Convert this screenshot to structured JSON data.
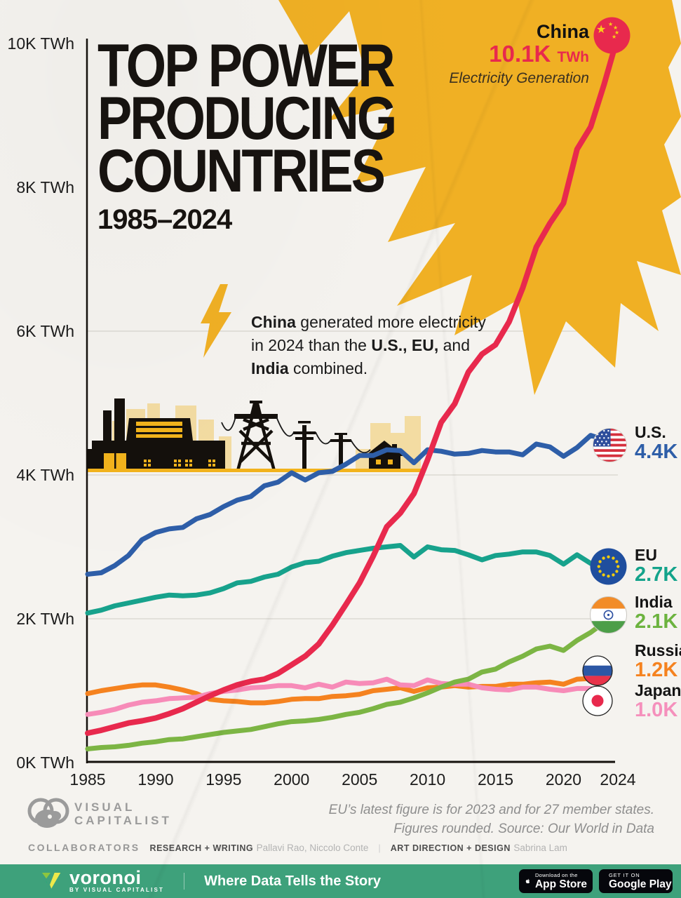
{
  "title": {
    "line1": "TOP POWER",
    "line2": "PRODUCING",
    "line3": "COUNTRIES",
    "subtitle": "1985–2024"
  },
  "annotation": {
    "rich_text": "**China** generated more electricity\nin 2024 than the **U.S., EU,** and\n**India** combined."
  },
  "chart_data": {
    "type": "line",
    "title": "TOP POWER PRODUCING COUNTRIES",
    "subtitle": "1985–2024",
    "unit": "TWh (thousands, K)",
    "x_range": [
      1985,
      2024
    ],
    "y_range_k_twh": [
      0,
      10
    ],
    "grid": "horizontal gridlines at 2K, 4K, 6K",
    "legend_position": "line-end labels at right",
    "y_ticks": [
      {
        "value": 10,
        "label": "10K TWh"
      },
      {
        "value": 8,
        "label": "8K TWh"
      },
      {
        "value": 6,
        "label": "6K TWh"
      },
      {
        "value": 4,
        "label": "4K TWh"
      },
      {
        "value": 2,
        "label": "2K TWh"
      },
      {
        "value": 0,
        "label": "0K TWh"
      }
    ],
    "gridline_values": [
      6,
      4,
      2
    ],
    "x_ticks": [
      {
        "year": 1985,
        "label": "1985"
      },
      {
        "year": 1990,
        "label": "1990"
      },
      {
        "year": 1995,
        "label": "1995"
      },
      {
        "year": 2000,
        "label": "2000"
      },
      {
        "year": 2005,
        "label": "2005"
      },
      {
        "year": 2010,
        "label": "2010"
      },
      {
        "year": 2015,
        "label": "2015"
      },
      {
        "year": 2020,
        "label": "2020"
      },
      {
        "year": 2024,
        "label": "2024"
      }
    ],
    "series": [
      {
        "name": "Russia",
        "color": "#f5821f",
        "width": 7,
        "start_year": 1985,
        "values": [
          0.96,
          1.0,
          1.03,
          1.06,
          1.08,
          1.08,
          1.05,
          1.01,
          0.96,
          0.88,
          0.86,
          0.85,
          0.83,
          0.83,
          0.85,
          0.88,
          0.89,
          0.89,
          0.92,
          0.93,
          0.95,
          1.0,
          1.02,
          1.04,
          0.99,
          1.04,
          1.05,
          1.07,
          1.05,
          1.06,
          1.06,
          1.09,
          1.09,
          1.11,
          1.12,
          1.09,
          1.16,
          1.17,
          1.18
        ]
      },
      {
        "name": "Japan",
        "color": "#f78bb8",
        "width": 7,
        "start_year": 1985,
        "values": [
          0.67,
          0.7,
          0.74,
          0.8,
          0.84,
          0.86,
          0.89,
          0.9,
          0.91,
          0.96,
          0.99,
          1.01,
          1.04,
          1.05,
          1.07,
          1.07,
          1.04,
          1.09,
          1.05,
          1.12,
          1.1,
          1.11,
          1.16,
          1.08,
          1.07,
          1.15,
          1.1,
          1.09,
          1.09,
          1.04,
          1.02,
          1.01,
          1.05,
          1.05,
          1.02,
          1.0,
          1.03,
          1.03,
          0.99
        ]
      },
      {
        "name": "India",
        "color": "#7cb544",
        "width": 7,
        "start_year": 1985,
        "values": [
          0.19,
          0.21,
          0.22,
          0.24,
          0.27,
          0.29,
          0.32,
          0.33,
          0.36,
          0.39,
          0.42,
          0.44,
          0.46,
          0.5,
          0.54,
          0.57,
          0.58,
          0.6,
          0.63,
          0.67,
          0.7,
          0.75,
          0.81,
          0.84,
          0.9,
          0.97,
          1.05,
          1.12,
          1.16,
          1.26,
          1.3,
          1.4,
          1.48,
          1.58,
          1.62,
          1.56,
          1.7,
          1.81,
          1.95,
          2.1
        ]
      },
      {
        "name": "EU",
        "color": "#17a28c",
        "width": 7,
        "start_year": 1985,
        "values": [
          2.08,
          2.12,
          2.18,
          2.22,
          2.26,
          2.3,
          2.33,
          2.32,
          2.33,
          2.36,
          2.42,
          2.5,
          2.52,
          2.58,
          2.62,
          2.72,
          2.78,
          2.8,
          2.87,
          2.92,
          2.95,
          2.98,
          3.0,
          3.02,
          2.86,
          3.0,
          2.96,
          2.95,
          2.89,
          2.82,
          2.88,
          2.9,
          2.93,
          2.93,
          2.88,
          2.76,
          2.89,
          2.77,
          2.7
        ]
      },
      {
        "name": "U.S.",
        "color": "#2e5ea8",
        "width": 7,
        "start_year": 1985,
        "values": [
          2.62,
          2.64,
          2.74,
          2.88,
          3.1,
          3.2,
          3.25,
          3.27,
          3.39,
          3.45,
          3.56,
          3.65,
          3.7,
          3.85,
          3.9,
          4.03,
          3.93,
          4.03,
          4.05,
          4.15,
          4.27,
          4.27,
          4.35,
          4.34,
          4.17,
          4.35,
          4.33,
          4.29,
          4.3,
          4.34,
          4.32,
          4.32,
          4.28,
          4.43,
          4.39,
          4.26,
          4.38,
          4.55,
          4.49,
          4.4
        ]
      },
      {
        "name": "China",
        "color": "#e8294d",
        "width": 8,
        "start_year": 1985,
        "values": [
          0.41,
          0.45,
          0.5,
          0.55,
          0.58,
          0.62,
          0.68,
          0.75,
          0.84,
          0.93,
          1.01,
          1.08,
          1.13,
          1.16,
          1.24,
          1.36,
          1.48,
          1.65,
          1.91,
          2.2,
          2.5,
          2.87,
          3.28,
          3.47,
          3.74,
          4.21,
          4.73,
          4.99,
          5.43,
          5.68,
          5.81,
          6.13,
          6.6,
          7.17,
          7.5,
          7.78,
          8.53,
          8.84,
          9.44,
          10.1
        ]
      }
    ],
    "end_labels": [
      {
        "name": "U.S.",
        "value": "4.4K",
        "color": "#2e5ea8",
        "flag": "us-flag-icon"
      },
      {
        "name": "EU",
        "value": "2.7K",
        "color": "#14a38b",
        "flag": "eu-flag-icon"
      },
      {
        "name": "India",
        "value": "2.1K",
        "color": "#6cb33f",
        "flag": "india-flag-icon"
      },
      {
        "name": "Russia",
        "value": "1.2K",
        "color": "#f5821f",
        "flag": "russia-flag-icon"
      },
      {
        "name": "Japan",
        "value": "1.0K",
        "color": "#f590bc",
        "flag": "japan-flag-icon"
      }
    ],
    "china_callout": {
      "country": "China",
      "value": "10.1K",
      "unit": "TWh",
      "caption": "Electricity Generation",
      "value_color": "#e8294d"
    }
  },
  "footer": {
    "note_line1": "EU’s latest figure is for 2023 and for 27 member states.",
    "note_line2": "Figures rounded. Source: Our World in Data",
    "collaborators_label": "COLLABORATORS",
    "credits": [
      {
        "role": "RESEARCH + WRITING",
        "names": "Pallavi Rao, Niccolo Conte"
      },
      {
        "role": "ART DIRECTION + DESIGN",
        "names": "Sabrina Lam"
      }
    ],
    "credit_separator": "|"
  },
  "branding": {
    "visual_capitalist": {
      "line1": "VISUAL",
      "line2": "CAPITALIST"
    },
    "voronoi": {
      "brand": "voronoi",
      "byline": "BY VISUAL CAPITALIST",
      "tagline": "Where Data Tells the Story"
    },
    "app_store_badge": {
      "line1": "Download on the",
      "line2": "App Store"
    },
    "google_play_badge": {
      "line1": "GET IT ON",
      "line2": "Google Play"
    },
    "bar_color": "#3ea17b",
    "starburst_color": "#f0b024"
  }
}
